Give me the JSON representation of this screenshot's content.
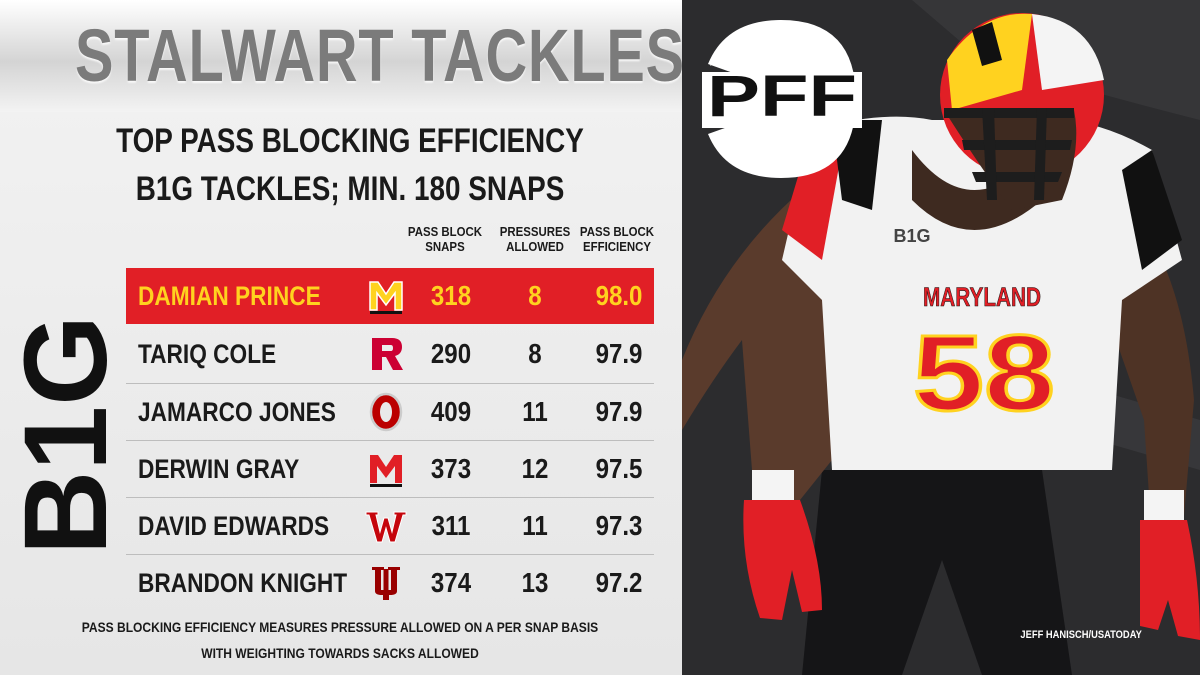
{
  "header": {
    "title": "STALWART TACKLES",
    "subtitle_line1": "TOP PASS BLOCKING EFFICIENCY",
    "subtitle_line2": "B1G TACKLES; MIN. 180 SNAPS"
  },
  "columns": [
    {
      "line1": "PASS BLOCK",
      "line2": "SNAPS"
    },
    {
      "line1": "PRESSURES",
      "line2": "ALLOWED"
    },
    {
      "line1": "PASS BLOCK",
      "line2": "EFFICIENCY"
    }
  ],
  "conference_logo": {
    "text": "B1G",
    "icon": "big-ten-logo"
  },
  "players": [
    {
      "name": "DAMIAN PRINCE",
      "team_icon": "maryland-logo",
      "snaps": "318",
      "pressures": "8",
      "efficiency": "98.0",
      "highlight": true
    },
    {
      "name": "TARIQ COLE",
      "team_icon": "rutgers-logo",
      "snaps": "290",
      "pressures": "8",
      "efficiency": "97.9",
      "highlight": false
    },
    {
      "name": "JAMARCO JONES",
      "team_icon": "ohio-state-logo",
      "snaps": "409",
      "pressures": "11",
      "efficiency": "97.9",
      "highlight": false
    },
    {
      "name": "DERWIN GRAY",
      "team_icon": "maryland-logo",
      "snaps": "373",
      "pressures": "12",
      "efficiency": "97.5",
      "highlight": false
    },
    {
      "name": "DAVID EDWARDS",
      "team_icon": "wisconsin-logo",
      "snaps": "311",
      "pressures": "11",
      "efficiency": "97.3",
      "highlight": false
    },
    {
      "name": "BRANDON KNIGHT",
      "team_icon": "indiana-logo",
      "snaps": "374",
      "pressures": "13",
      "efficiency": "97.2",
      "highlight": false
    }
  ],
  "footnote": {
    "line1": "PASS BLOCKING EFFICIENCY MEASURES PRESSURE ALLOWED ON A PER SNAP BASIS",
    "line2": "WITH WEIGHTING TOWARDS SACKS ALLOWED"
  },
  "brand": {
    "logo_text": "PFF",
    "icon": "pff-logo"
  },
  "photo": {
    "credit": "JEFF HANISCH/USATODAY",
    "jersey_text": "MARYLAND",
    "jersey_number": "58",
    "conference_patch": "B1G"
  },
  "colors": {
    "highlight_row": "#e11f26",
    "highlight_text": "#ffd21f",
    "maryland_red": "#e11f26",
    "rutgers_red": "#cc0033",
    "ohio_state_red": "#bb0000",
    "wisconsin_red": "#c5050c",
    "indiana_crimson": "#990000"
  }
}
